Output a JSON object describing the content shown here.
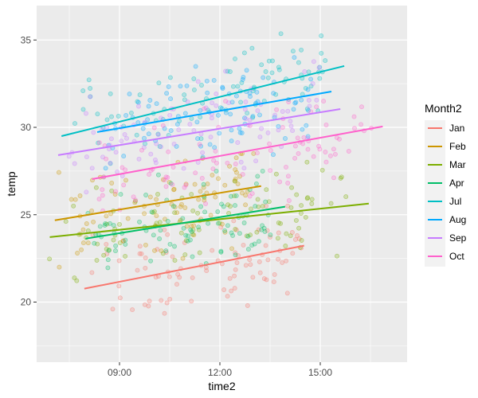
{
  "chart_data": {
    "type": "scatter",
    "title": "",
    "xlabel": "time2",
    "ylabel": "temp",
    "xlim": [
      "06:31",
      "17:34"
    ],
    "ylim": [
      16.6,
      37.0
    ],
    "x_ticks": [
      "09:00",
      "12:00",
      "15:00"
    ],
    "y_ticks": [
      20,
      25,
      30,
      35
    ],
    "grid": true,
    "legend": {
      "title": "Month2",
      "position": "right",
      "entries": [
        "Jan",
        "Feb",
        "Mar",
        "Apr",
        "Jul",
        "Aug",
        "Sep",
        "Oct"
      ]
    },
    "point_alpha": 0.25,
    "series": [
      {
        "name": "Jan",
        "color": "#F8766D",
        "fit_line": [
          [
            "07:57",
            20.77
          ],
          [
            "14:31",
            23.23
          ]
        ],
        "point_band": [
          17.5,
          25.5
        ],
        "time_range": [
          "08:00",
          "15:00"
        ]
      },
      {
        "name": "Feb",
        "color": "#CD9600",
        "fit_line": [
          [
            "07:04",
            24.68
          ],
          [
            "13:14",
            26.64
          ]
        ],
        "point_band": [
          22.0,
          28.5
        ],
        "time_range": [
          "07:00",
          "13:30"
        ]
      },
      {
        "name": "Mar",
        "color": "#7CAE00",
        "fit_line": [
          [
            "06:55",
            23.72
          ],
          [
            "16:27",
            25.64
          ]
        ],
        "point_band": [
          19.0,
          28.5
        ],
        "time_range": [
          "06:50",
          "16:30"
        ]
      },
      {
        "name": "Apr",
        "color": "#00BE67",
        "fit_line": [
          [
            "07:59",
            23.63
          ],
          [
            "13:57",
            25.46
          ]
        ],
        "point_band": [
          21.5,
          27.5
        ],
        "time_range": [
          "08:00",
          "14:00"
        ]
      },
      {
        "name": "Jul",
        "color": "#00BFC4",
        "fit_line": [
          [
            "07:16",
            29.5
          ],
          [
            "15:43",
            33.51
          ]
        ],
        "point_band": [
          27.0,
          36.0
        ],
        "time_range": [
          "07:15",
          "15:50"
        ]
      },
      {
        "name": "Aug",
        "color": "#00A9FF",
        "fit_line": [
          [
            "08:20",
            29.73
          ],
          [
            "15:20",
            32.05
          ]
        ],
        "point_band": [
          27.5,
          34.0
        ],
        "time_range": [
          "08:20",
          "15:20"
        ]
      },
      {
        "name": "Sep",
        "color": "#C77CFF",
        "fit_line": [
          [
            "07:10",
            28.41
          ],
          [
            "15:36",
            31.05
          ]
        ],
        "point_band": [
          25.0,
          35.2
        ],
        "time_range": [
          "07:10",
          "15:40"
        ]
      },
      {
        "name": "Oct",
        "color": "#FF61CC",
        "fit_line": [
          [
            "08:11",
            27.04
          ],
          [
            "16:52",
            30.05
          ]
        ],
        "point_band": [
          25.0,
          31.5
        ],
        "time_range": [
          "08:10",
          "17:00"
        ]
      }
    ]
  },
  "axes": {
    "x_title": "time2",
    "y_title": "temp",
    "x_ticks": [
      "09:00",
      "12:00",
      "15:00"
    ],
    "y_ticks": [
      "20",
      "25",
      "30",
      "35"
    ]
  },
  "legend": {
    "title": "Month2",
    "labels": [
      "Jan",
      "Feb",
      "Mar",
      "Apr",
      "Jul",
      "Aug",
      "Sep",
      "Oct"
    ]
  }
}
